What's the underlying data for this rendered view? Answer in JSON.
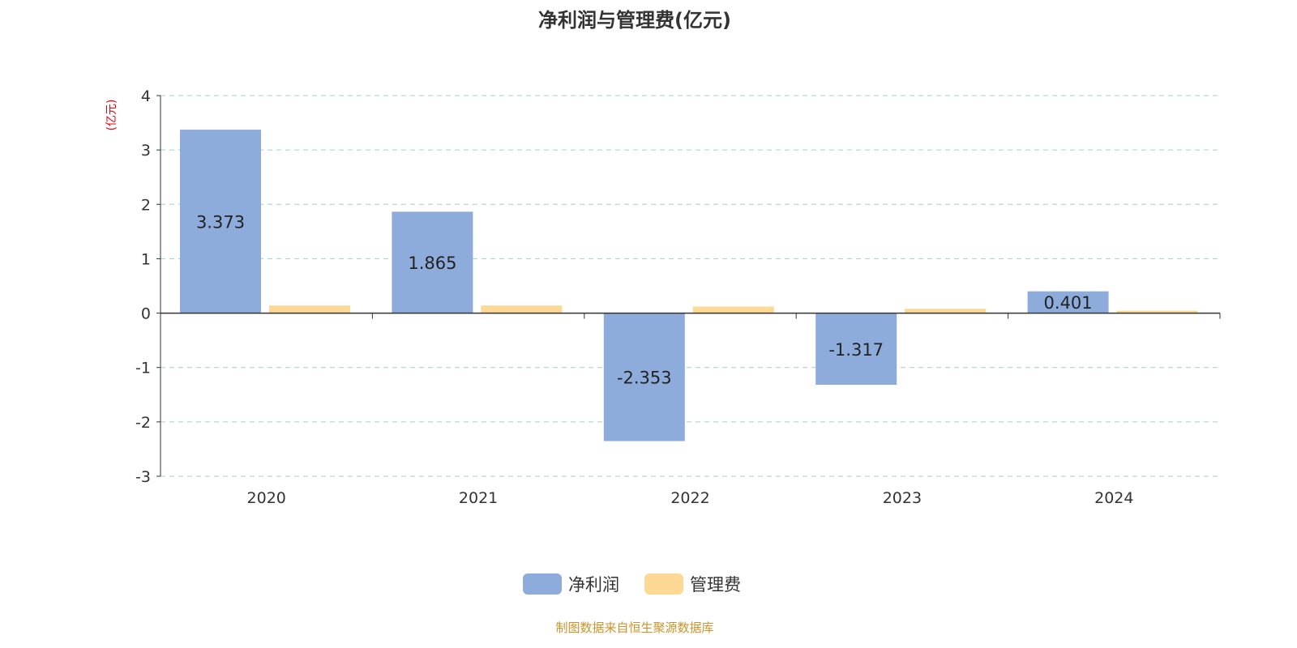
{
  "chart_data": {
    "type": "bar",
    "title": "净利润与管理费(亿元)",
    "ylabel": "(亿元)",
    "categories": [
      "2020",
      "2021",
      "2022",
      "2023",
      "2024"
    ],
    "series": [
      {
        "name": "净利润",
        "values": [
          3.373,
          1.865,
          -2.353,
          -1.317,
          0.401
        ],
        "color": "#8eacdb",
        "labels": [
          "3.373",
          "1.865",
          "-2.353",
          "-1.317",
          "0.401"
        ]
      },
      {
        "name": "管理费",
        "values": [
          0.14,
          0.14,
          0.12,
          0.08,
          0.045
        ],
        "color": "#fdd995"
      }
    ],
    "ylim": [
      -3,
      4
    ],
    "yticks": [
      "-3",
      "-2",
      "-1",
      "0",
      "1",
      "2",
      "3",
      "4"
    ],
    "grid": true,
    "legend_position": "bottom",
    "source": "制图数据来自恒生聚源数据库"
  },
  "colors": {
    "title": "#333333",
    "ylabel": "#e8000b",
    "source": "#c9942a",
    "grid": "#a9cfc7"
  }
}
